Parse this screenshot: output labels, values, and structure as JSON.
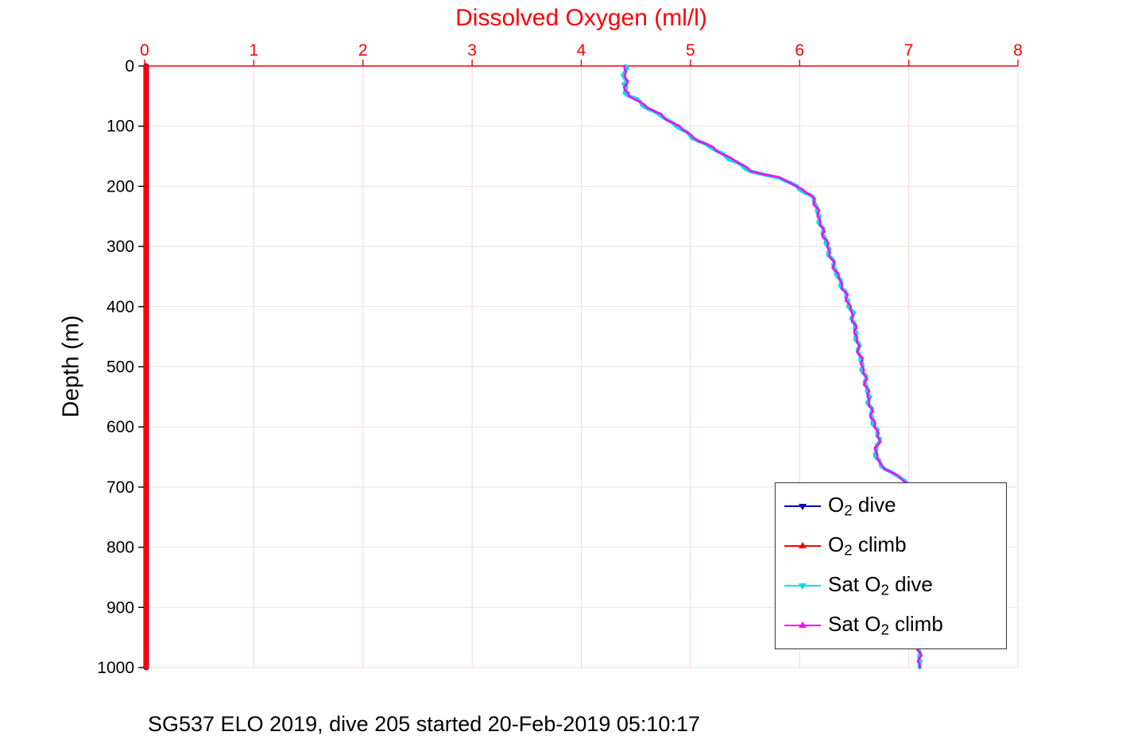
{
  "figure": {
    "title": "Dissolved Oxygen (ml/l)",
    "y_label": "Depth (m)",
    "caption": "SG537 ELO 2019, dive 205 started 20-Feb-2019 05:10:17"
  },
  "colors": {
    "background": "#FFFFFF",
    "title": "#FF0000",
    "axis_x": "#FF0000",
    "axis_y": "#000000",
    "tick_label_x": "#FF0000",
    "tick_label_y": "#000000",
    "grid_x": "#F6D6D6",
    "grid_y": "#F0DEDE",
    "legend_border": "#333333"
  },
  "chart_data": {
    "type": "line",
    "title": "Dissolved Oxygen (ml/l)",
    "xlabel": "Dissolved Oxygen (ml/l)",
    "ylabel": "Depth (m)",
    "grid": true,
    "legend_position": "lower-right",
    "x_axis": {
      "min": 0,
      "max": 8,
      "position": "top",
      "ticks": [
        0,
        1,
        2,
        3,
        4,
        5,
        6,
        7,
        8
      ]
    },
    "y_axis": {
      "min": 0,
      "max": 1000,
      "reversed": true,
      "ticks": [
        0,
        100,
        200,
        300,
        400,
        500,
        600,
        700,
        800,
        900,
        1000
      ]
    },
    "series": [
      {
        "name": "O2 dive",
        "label": {
          "pre": "O",
          "sub": "2",
          "post": " dive"
        },
        "color": "#0000AA",
        "marker": "triangle-down",
        "points_format": [
          "depth_m",
          "o2_ml_per_l"
        ],
        "points": [
          [
            0,
            0
          ],
          [
            1000,
            0
          ]
        ]
      },
      {
        "name": "O2 climb",
        "label": {
          "pre": "O",
          "sub": "2",
          "post": " climb"
        },
        "color": "#FF0000",
        "marker": "triangle-up",
        "points_format": [
          "depth_m",
          "o2_ml_per_l"
        ],
        "points": [
          [
            0,
            0
          ],
          [
            1000,
            0
          ]
        ]
      },
      {
        "name": "Sat O2 dive",
        "label": {
          "pre": "Sat O",
          "sub": "2",
          "post": " dive"
        },
        "color": "#00E0E0",
        "marker": "triangle-down",
        "points_format": [
          "depth_m",
          "o2_ml_per_l"
        ],
        "points": [
          [
            0,
            4.4
          ],
          [
            8,
            4.42
          ],
          [
            15,
            4.4
          ],
          [
            22,
            4.41
          ],
          [
            30,
            4.39
          ],
          [
            38,
            4.42
          ],
          [
            45,
            4.4
          ],
          [
            50,
            4.44
          ],
          [
            55,
            4.5
          ],
          [
            60,
            4.53
          ],
          [
            65,
            4.57
          ],
          [
            70,
            4.61
          ],
          [
            75,
            4.65
          ],
          [
            80,
            4.7
          ],
          [
            85,
            4.75
          ],
          [
            90,
            4.79
          ],
          [
            95,
            4.84
          ],
          [
            100,
            4.88
          ],
          [
            105,
            4.91
          ],
          [
            110,
            4.95
          ],
          [
            115,
            4.99
          ],
          [
            120,
            5.03
          ],
          [
            125,
            5.08
          ],
          [
            130,
            5.13
          ],
          [
            135,
            5.18
          ],
          [
            140,
            5.23
          ],
          [
            145,
            5.28
          ],
          [
            150,
            5.33
          ],
          [
            155,
            5.36
          ],
          [
            160,
            5.42
          ],
          [
            165,
            5.45
          ],
          [
            170,
            5.5
          ],
          [
            175,
            5.56
          ],
          [
            178,
            5.62
          ],
          [
            182,
            5.72
          ],
          [
            186,
            5.8
          ],
          [
            190,
            5.86
          ],
          [
            195,
            5.92
          ],
          [
            200,
            5.97
          ],
          [
            205,
            6.01
          ],
          [
            210,
            6.05
          ],
          [
            215,
            6.09
          ],
          [
            220,
            6.12
          ],
          [
            225,
            6.14
          ],
          [
            230,
            6.15
          ],
          [
            240,
            6.16
          ],
          [
            250,
            6.17
          ],
          [
            260,
            6.19
          ],
          [
            270,
            6.2
          ],
          [
            280,
            6.22
          ],
          [
            290,
            6.24
          ],
          [
            300,
            6.25
          ],
          [
            310,
            6.27
          ],
          [
            320,
            6.29
          ],
          [
            330,
            6.31
          ],
          [
            340,
            6.33
          ],
          [
            350,
            6.35
          ],
          [
            360,
            6.37
          ],
          [
            370,
            6.4
          ],
          [
            380,
            6.42
          ],
          [
            390,
            6.44
          ],
          [
            400,
            6.46
          ],
          [
            410,
            6.48
          ],
          [
            420,
            6.49
          ],
          [
            430,
            6.5
          ],
          [
            440,
            6.51
          ],
          [
            450,
            6.52
          ],
          [
            460,
            6.53
          ],
          [
            470,
            6.54
          ],
          [
            480,
            6.55
          ],
          [
            490,
            6.56
          ],
          [
            500,
            6.57
          ],
          [
            510,
            6.59
          ],
          [
            520,
            6.6
          ],
          [
            530,
            6.61
          ],
          [
            540,
            6.62
          ],
          [
            550,
            6.63
          ],
          [
            560,
            6.64
          ],
          [
            570,
            6.65
          ],
          [
            580,
            6.66
          ],
          [
            590,
            6.67
          ],
          [
            600,
            6.68
          ],
          [
            605,
            6.7
          ],
          [
            610,
            6.72
          ],
          [
            615,
            6.73
          ],
          [
            620,
            6.73
          ],
          [
            625,
            6.72
          ],
          [
            630,
            6.71
          ],
          [
            640,
            6.7
          ],
          [
            650,
            6.7
          ],
          [
            655,
            6.71
          ],
          [
            660,
            6.73
          ],
          [
            665,
            6.76
          ],
          [
            670,
            6.79
          ],
          [
            675,
            6.83
          ],
          [
            680,
            6.88
          ],
          [
            685,
            6.93
          ],
          [
            690,
            6.96
          ],
          [
            695,
            6.99
          ],
          [
            700,
            7.01
          ],
          [
            720,
            7.02
          ],
          [
            750,
            7.03
          ],
          [
            800,
            7.05
          ],
          [
            850,
            7.06
          ],
          [
            900,
            7.07
          ],
          [
            950,
            7.09
          ],
          [
            1000,
            7.1
          ]
        ]
      },
      {
        "name": "Sat O2 climb",
        "label": {
          "pre": "Sat O",
          "sub": "2",
          "post": " climb"
        },
        "color": "#FF00FF",
        "marker": "triangle-up",
        "points_format": [
          "depth_m",
          "o2_ml_per_l"
        ],
        "points": [
          [
            0,
            4.4
          ],
          [
            20,
            4.41
          ],
          [
            40,
            4.41
          ],
          [
            50,
            4.43
          ],
          [
            60,
            4.54
          ],
          [
            80,
            4.71
          ],
          [
            100,
            4.89
          ],
          [
            120,
            5.04
          ],
          [
            140,
            5.24
          ],
          [
            160,
            5.43
          ],
          [
            175,
            5.57
          ],
          [
            185,
            5.79
          ],
          [
            195,
            5.93
          ],
          [
            205,
            6.02
          ],
          [
            215,
            6.1
          ],
          [
            225,
            6.14
          ],
          [
            240,
            6.16
          ],
          [
            260,
            6.19
          ],
          [
            280,
            6.22
          ],
          [
            300,
            6.26
          ],
          [
            320,
            6.29
          ],
          [
            340,
            6.33
          ],
          [
            360,
            6.38
          ],
          [
            380,
            6.42
          ],
          [
            400,
            6.46
          ],
          [
            420,
            6.49
          ],
          [
            440,
            6.51
          ],
          [
            460,
            6.53
          ],
          [
            480,
            6.55
          ],
          [
            500,
            6.58
          ],
          [
            520,
            6.6
          ],
          [
            540,
            6.62
          ],
          [
            560,
            6.64
          ],
          [
            580,
            6.66
          ],
          [
            600,
            6.69
          ],
          [
            610,
            6.72
          ],
          [
            620,
            6.73
          ],
          [
            630,
            6.71
          ],
          [
            645,
            6.7
          ],
          [
            660,
            6.73
          ],
          [
            675,
            6.83
          ],
          [
            690,
            6.97
          ],
          [
            700,
            7.01
          ],
          [
            750,
            7.03
          ],
          [
            800,
            7.05
          ],
          [
            850,
            7.06
          ],
          [
            900,
            7.08
          ],
          [
            950,
            7.09
          ],
          [
            1000,
            7.1
          ]
        ]
      }
    ]
  }
}
